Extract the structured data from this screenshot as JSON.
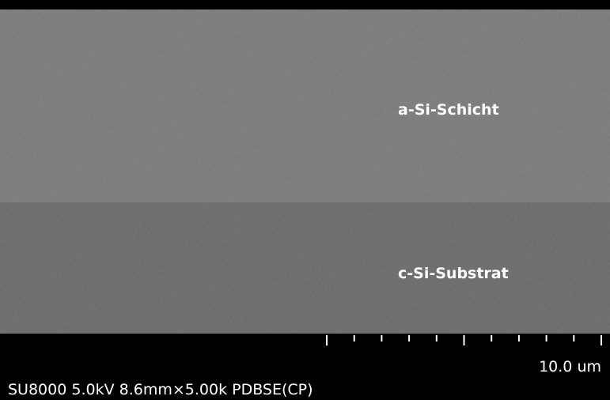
{
  "image": {
    "layers": [
      {
        "label": "a-Si-Schicht"
      },
      {
        "label": "c-Si-Substrat"
      }
    ],
    "scale_bar": {
      "label": "10.0 um"
    },
    "info": "SU8000 5.0kV 8.6mm×5.00k PDBSE(CP)"
  }
}
